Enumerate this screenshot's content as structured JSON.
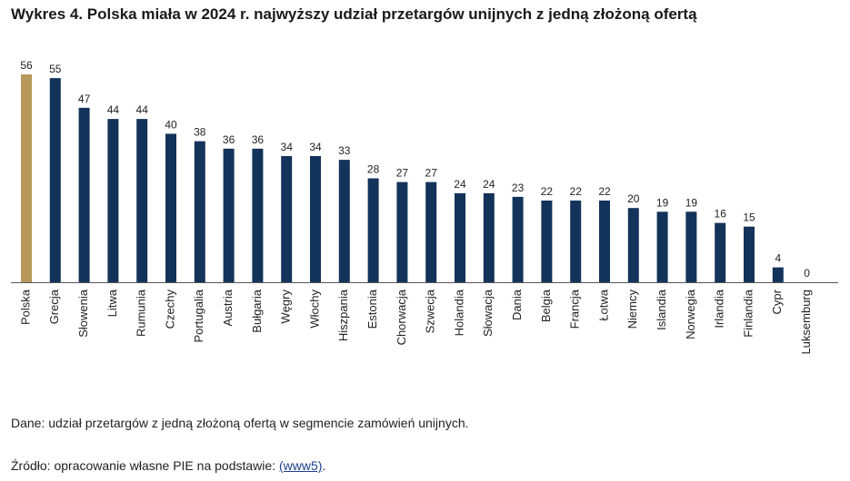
{
  "title": "Wykres 4. Polska miała w 2024 r. najwyższy udział przetargów unijnych z jedną złożoną ofertą",
  "colors": {
    "highlight": "#b5985a",
    "bar": "#13335a"
  },
  "notes": {
    "data": "Dane: udział przetargów z jedną złożoną ofertą w segmencie zamówień unijnych.",
    "source_prefix": "Źródło: opracowanie własne PIE na podstawie: ",
    "source_link": "(www5)",
    "source_suffix": "."
  },
  "chart_data": {
    "type": "bar",
    "title": "Wykres 4. Polska miała w 2024 r. najwyższy udział przetargów unijnych z jedną złożoną ofertą",
    "xlabel": "",
    "ylabel": "",
    "ylim": [
      0,
      56
    ],
    "grid": false,
    "highlight_category": "Polska",
    "categories": [
      "Polska",
      "Grecja",
      "Słowenia",
      "Litwa",
      "Rumunia",
      "Czechy",
      "Portugalia",
      "Austria",
      "Bułgaria",
      "Węgry",
      "Włochy",
      "Hiszpania",
      "Estonia",
      "Chorwacja",
      "Szwecja",
      "Holandia",
      "Słowacja",
      "Dania",
      "Belgia",
      "Francja",
      "Łotwa",
      "Niemcy",
      "Islandia",
      "Norwegia",
      "Irlandia",
      "Finlandia",
      "Cypr",
      "Luksemburg"
    ],
    "values": [
      56,
      55,
      47,
      44,
      44,
      40,
      38,
      36,
      36,
      34,
      34,
      33,
      28,
      27,
      27,
      24,
      24,
      23,
      22,
      22,
      22,
      20,
      19,
      19,
      16,
      15,
      4,
      0
    ]
  }
}
